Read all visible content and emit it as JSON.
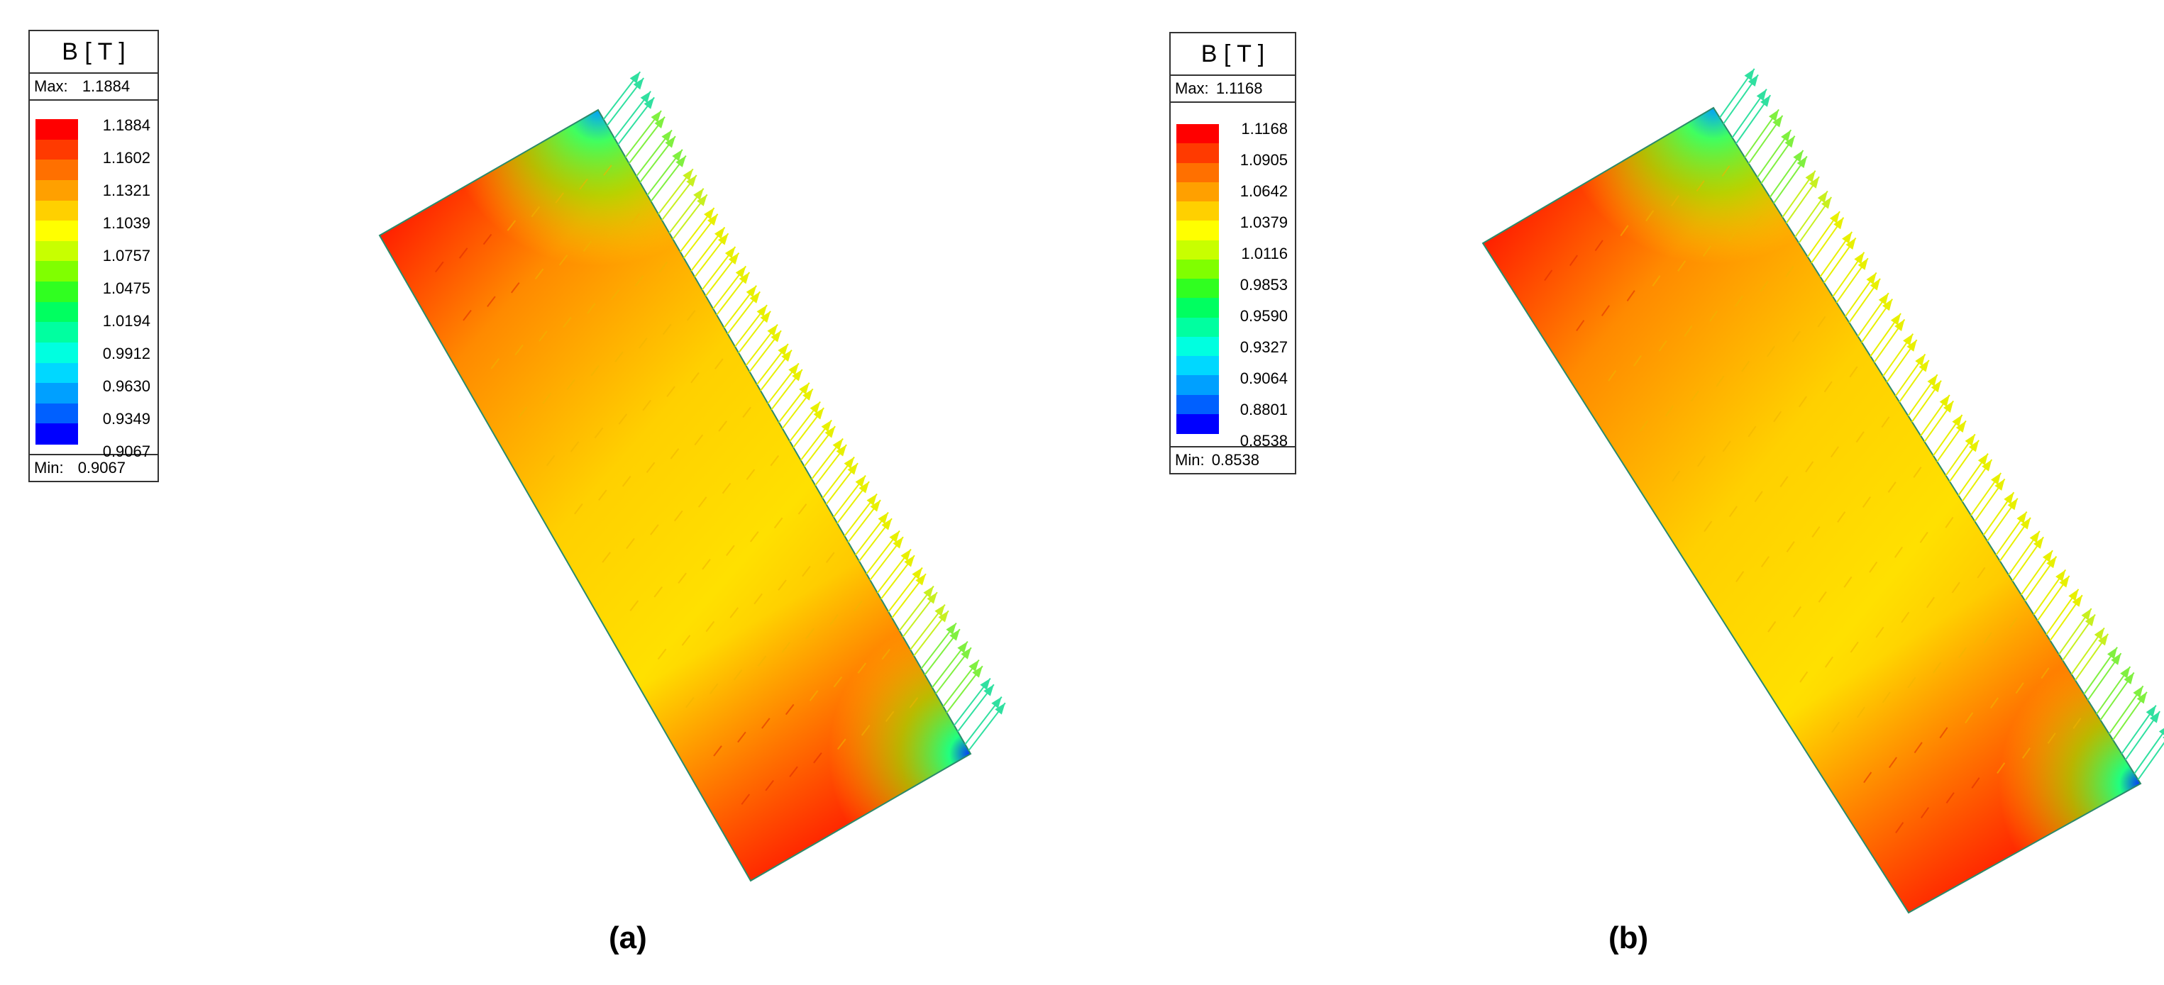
{
  "panels": [
    {
      "id": "a",
      "caption": "(a)",
      "legend": {
        "title": "B [ T ]",
        "max_label": "Max:",
        "max_value": "1.1884",
        "min_label": "Min:",
        "min_value": "0.9067",
        "levels": [
          "1.1884",
          "1.1602",
          "1.1321",
          "1.1039",
          "1.0757",
          "1.0475",
          "1.0194",
          "0.9912",
          "0.9630",
          "0.9349",
          "0.9067"
        ]
      }
    },
    {
      "id": "b",
      "caption": "(b)",
      "legend": {
        "title": "B [ T ]",
        "max_label": "Max:",
        "max_value": "1.1168",
        "min_label": "Min:",
        "min_value": "0.8538",
        "levels": [
          "1.1168",
          "1.0905",
          "1.0642",
          "1.0379",
          "1.0116",
          "0.9853",
          "0.9590",
          "0.9327",
          "0.9064",
          "0.8801",
          "0.8538"
        ]
      }
    }
  ],
  "colors": {
    "scale": [
      "#ff0000",
      "#ff3a00",
      "#ff7000",
      "#ffa000",
      "#ffd000",
      "#ffff00",
      "#c8ff00",
      "#80ff00",
      "#30ff20",
      "#00ff60",
      "#00ffa0",
      "#00ffe0",
      "#00d8ff",
      "#00a0ff",
      "#0060ff",
      "#0000ff"
    ]
  }
}
